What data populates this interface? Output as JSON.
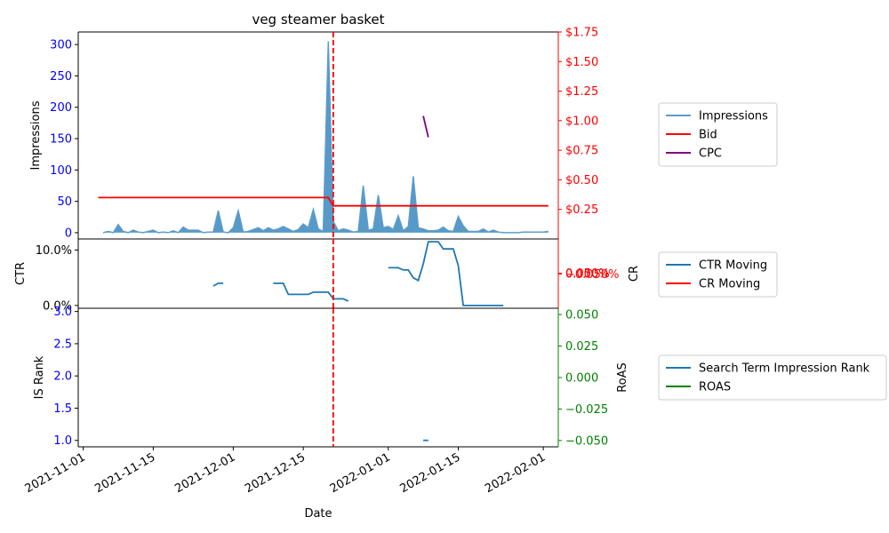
{
  "chart_data": [
    {
      "panel": "impressions",
      "type": "area",
      "title": "veg steamer basket",
      "ylabel_left": "Impressions",
      "ylabel_right": "",
      "ylim_left": [
        -10,
        320
      ],
      "ylim_right": [
        0,
        1.75
      ],
      "yticks_left": [
        "0",
        "50",
        "100",
        "150",
        "200",
        "250",
        "300"
      ],
      "yticks_right": [
        "$0.25",
        "$0.50",
        "$0.75",
        "$1.00",
        "$1.25",
        "$1.50",
        "$1.75"
      ],
      "left_axis_color": "#0000ff",
      "right_axis_color": "#ff0000",
      "series": [
        {
          "name": "Impressions",
          "color": "#5b9ccc",
          "fill": "#1f77b4",
          "points": [
            [
              "2021-11-05",
              0
            ],
            [
              "2021-11-06",
              2
            ],
            [
              "2021-11-07",
              0
            ],
            [
              "2021-11-08",
              13
            ],
            [
              "2021-11-09",
              2
            ],
            [
              "2021-11-10",
              0
            ],
            [
              "2021-11-11",
              4
            ],
            [
              "2021-11-12",
              1
            ],
            [
              "2021-11-13",
              0
            ],
            [
              "2021-11-14",
              2
            ],
            [
              "2021-11-15",
              4
            ],
            [
              "2021-11-16",
              0
            ],
            [
              "2021-11-17",
              1
            ],
            [
              "2021-11-18",
              0
            ],
            [
              "2021-11-19",
              3
            ],
            [
              "2021-11-20",
              0
            ],
            [
              "2021-11-21",
              9
            ],
            [
              "2021-11-22",
              4
            ],
            [
              "2021-11-23",
              4
            ],
            [
              "2021-11-24",
              4
            ],
            [
              "2021-11-25",
              0
            ],
            [
              "2021-11-26",
              1
            ],
            [
              "2021-11-27",
              1
            ],
            [
              "2021-11-28",
              35
            ],
            [
              "2021-11-29",
              1
            ],
            [
              "2021-11-30",
              0
            ],
            [
              "2021-12-01",
              8
            ],
            [
              "2021-12-02",
              35
            ],
            [
              "2021-12-03",
              1
            ],
            [
              "2021-12-04",
              2
            ],
            [
              "2021-12-05",
              5
            ],
            [
              "2021-12-06",
              8
            ],
            [
              "2021-12-07",
              3
            ],
            [
              "2021-12-08",
              8
            ],
            [
              "2021-12-09",
              4
            ],
            [
              "2021-12-10",
              6
            ],
            [
              "2021-12-11",
              10
            ],
            [
              "2021-12-12",
              6
            ],
            [
              "2021-12-13",
              2
            ],
            [
              "2021-12-14",
              5
            ],
            [
              "2021-12-15",
              14
            ],
            [
              "2021-12-16",
              8
            ],
            [
              "2021-12-17",
              37
            ],
            [
              "2021-12-18",
              6
            ],
            [
              "2021-12-19",
              2
            ],
            [
              "2021-12-20",
              305
            ],
            [
              "2021-12-21",
              18
            ],
            [
              "2021-12-22",
              3
            ],
            [
              "2021-12-23",
              6
            ],
            [
              "2021-12-24",
              4
            ],
            [
              "2021-12-25",
              1
            ],
            [
              "2021-12-26",
              2
            ],
            [
              "2021-12-27",
              75
            ],
            [
              "2021-12-28",
              4
            ],
            [
              "2021-12-29",
              6
            ],
            [
              "2021-12-30",
              60
            ],
            [
              "2021-12-31",
              8
            ],
            [
              "2022-01-01",
              10
            ],
            [
              "2022-01-02",
              5
            ],
            [
              "2022-01-03",
              27
            ],
            [
              "2022-01-04",
              3
            ],
            [
              "2022-01-05",
              10
            ],
            [
              "2022-01-06",
              90
            ],
            [
              "2022-01-07",
              8
            ],
            [
              "2022-01-08",
              6
            ],
            [
              "2022-01-09",
              3
            ],
            [
              "2022-01-10",
              3
            ],
            [
              "2022-01-11",
              4
            ],
            [
              "2022-01-12",
              9
            ],
            [
              "2022-01-13",
              3
            ],
            [
              "2022-01-14",
              2
            ],
            [
              "2022-01-15",
              26
            ],
            [
              "2022-01-16",
              11
            ],
            [
              "2022-01-17",
              2
            ],
            [
              "2022-01-18",
              2
            ],
            [
              "2022-01-19",
              2
            ],
            [
              "2022-01-20",
              6
            ],
            [
              "2022-01-21",
              1
            ],
            [
              "2022-01-22",
              4
            ],
            [
              "2022-01-23",
              1
            ],
            [
              "2022-01-24",
              0
            ],
            [
              "2022-01-25",
              0
            ],
            [
              "2022-01-26",
              0
            ],
            [
              "2022-01-27",
              0
            ],
            [
              "2022-01-28",
              1
            ],
            [
              "2022-01-29",
              1
            ],
            [
              "2022-01-30",
              1
            ],
            [
              "2022-01-31",
              1
            ],
            [
              "2022-02-01",
              1
            ],
            [
              "2022-02-02",
              2
            ]
          ]
        },
        {
          "name": "Bid",
          "axis": "right",
          "color": "#ff0000",
          "points": [
            [
              "2021-11-04",
              0.35
            ],
            [
              "2021-12-20",
              0.35
            ],
            [
              "2021-12-21",
              0.28
            ],
            [
              "2022-02-02",
              0.28
            ]
          ]
        },
        {
          "name": "CPC",
          "axis": "right",
          "color": "#800080",
          "points": [
            [
              "2022-01-08",
              1.04
            ],
            [
              "2022-01-09",
              0.86
            ]
          ]
        }
      ],
      "vline": {
        "x": "2021-12-21",
        "color": "#ff0000",
        "style": "dashed"
      }
    },
    {
      "panel": "ctr",
      "type": "line",
      "ylabel_left": "CTR",
      "ylabel_right": "CR",
      "ylim_left": [
        -0.005,
        0.12
      ],
      "ylim_right": [
        -0.05,
        0.05
      ],
      "yticks_left": [
        "0.0%",
        "10.0%"
      ],
      "yticks_right": [
        "−0.050%",
        "0.000%",
        "0.050%"
      ],
      "left_axis_color": "#000000",
      "right_axis_color": "#ff0000",
      "series": [
        {
          "name": "CTR Moving",
          "color": "#1f77b4",
          "segments": [
            [
              [
                "2021-11-27",
                0.035
              ],
              [
                "2021-11-28",
                0.04
              ],
              [
                "2021-11-29",
                0.04
              ]
            ],
            [
              [
                "2021-12-09",
                0.04
              ],
              [
                "2021-12-10",
                0.04
              ],
              [
                "2021-12-11",
                0.04
              ],
              [
                "2021-12-12",
                0.02
              ],
              [
                "2021-12-13",
                0.02
              ],
              [
                "2021-12-14",
                0.02
              ],
              [
                "2021-12-15",
                0.02
              ],
              [
                "2021-12-16",
                0.02
              ],
              [
                "2021-12-17",
                0.024
              ],
              [
                "2021-12-18",
                0.024
              ],
              [
                "2021-12-19",
                0.024
              ],
              [
                "2021-12-20",
                0.024
              ],
              [
                "2021-12-21",
                0.012
              ],
              [
                "2021-12-22",
                0.012
              ],
              [
                "2021-12-23",
                0.012
              ],
              [
                "2021-12-24",
                0.008
              ]
            ],
            [
              [
                "2022-01-01",
                0.068
              ],
              [
                "2022-01-02",
                0.068
              ],
              [
                "2022-01-03",
                0.068
              ],
              [
                "2022-01-04",
                0.064
              ],
              [
                "2022-01-05",
                0.064
              ],
              [
                "2022-01-06",
                0.05
              ],
              [
                "2022-01-07",
                0.045
              ],
              [
                "2022-01-08",
                0.075
              ],
              [
                "2022-01-09",
                0.115
              ],
              [
                "2022-01-10",
                0.115
              ],
              [
                "2022-01-11",
                0.115
              ],
              [
                "2022-01-12",
                0.102
              ],
              [
                "2022-01-13",
                0.102
              ],
              [
                "2022-01-14",
                0.102
              ],
              [
                "2022-01-15",
                0.072
              ],
              [
                "2022-01-16",
                0.0
              ],
              [
                "2022-01-17",
                0.0
              ],
              [
                "2022-01-18",
                0.0
              ],
              [
                "2022-01-19",
                0.0
              ],
              [
                "2022-01-20",
                0.0
              ],
              [
                "2022-01-21",
                0.0
              ],
              [
                "2022-01-22",
                0.0
              ],
              [
                "2022-01-23",
                0.0
              ],
              [
                "2022-01-24",
                0.0
              ]
            ]
          ]
        },
        {
          "name": "CR Moving",
          "axis": "right",
          "color": "#ff0000",
          "segments": []
        }
      ],
      "vline": {
        "x": "2021-12-21",
        "color": "#ff0000",
        "style": "dashed"
      }
    },
    {
      "panel": "rank",
      "type": "line",
      "xlabel": "Date",
      "ylabel_left": "IS Rank",
      "ylabel_right": "RoAS",
      "ylim_left": [
        0.9,
        3.05
      ],
      "ylim_right": [
        -0.055,
        0.055
      ],
      "yticks_left": [
        "1.0",
        "1.5",
        "2.0",
        "2.5",
        "3.0"
      ],
      "yticks_right": [
        "−0.050",
        "−0.025",
        "0.000",
        "0.025",
        "0.050"
      ],
      "left_axis_color": "#0000ff",
      "right_axis_color": "#008000",
      "xticks": [
        "2021-11-01",
        "2021-11-15",
        "2021-12-01",
        "2021-12-15",
        "2022-01-01",
        "2022-01-15",
        "2022-02-01"
      ],
      "xlim": [
        "2021-10-31",
        "2022-02-04"
      ],
      "series": [
        {
          "name": "Search Term Impression Rank",
          "color": "#1f77b4",
          "segments": [
            [
              [
                "2022-01-08",
                1.0
              ],
              [
                "2022-01-09",
                1.0
              ]
            ]
          ]
        },
        {
          "name": "ROAS",
          "axis": "right",
          "color": "#008000",
          "segments": []
        }
      ],
      "vline": {
        "x": "2021-12-21",
        "color": "#ff0000",
        "style": "dashed"
      }
    }
  ]
}
